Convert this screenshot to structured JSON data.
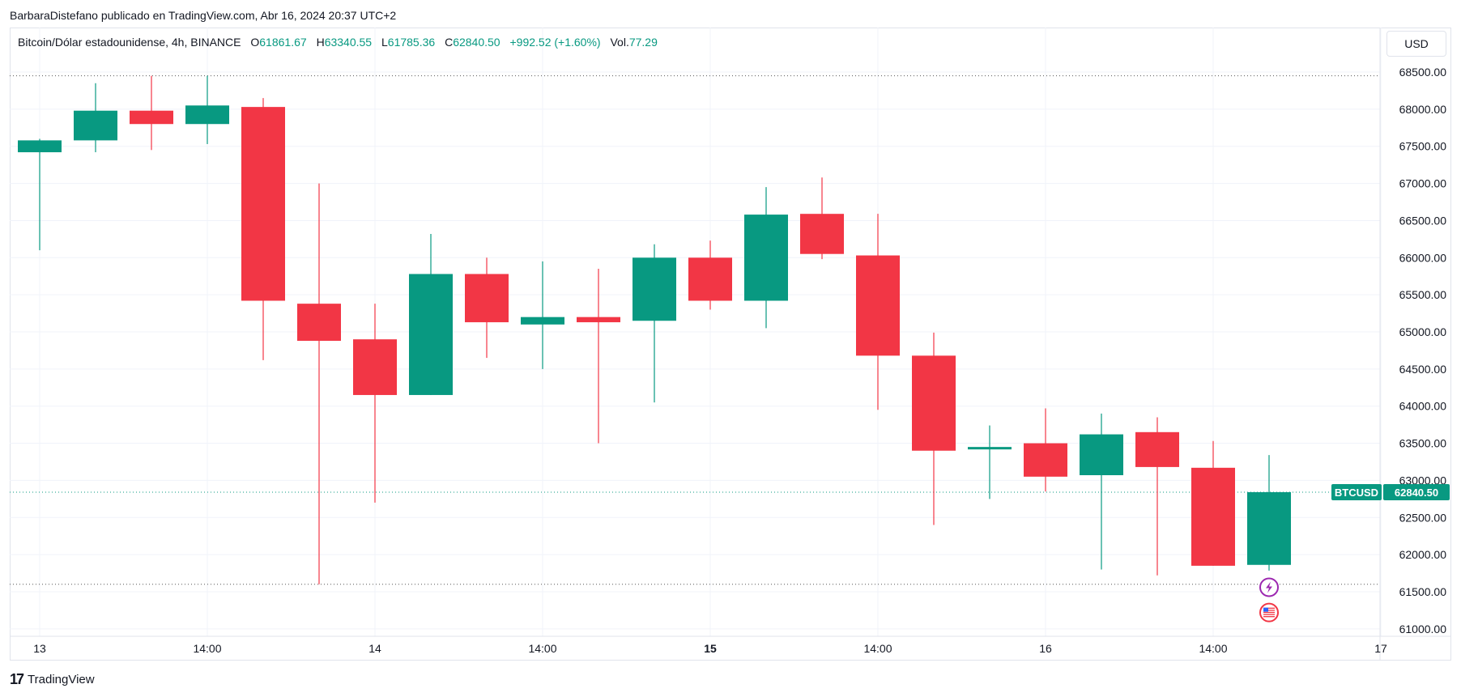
{
  "publisher_line": "BarbaraDistefano publicado en TradingView.com, Abr 16, 2024 20:37 UTC+2",
  "legend": {
    "symbol": "Bitcoin/Dólar estadounidense, 4h, BINANCE",
    "o_label": "O",
    "o": "61861.67",
    "h_label": "H",
    "h": "63340.55",
    "l_label": "L",
    "l": "61785.36",
    "c_label": "C",
    "c": "62840.50",
    "change": "+992.52 (+1.60%)",
    "vol_label": "Vol.",
    "vol": "77.29"
  },
  "currency_button": "USD",
  "brand": "TradingView",
  "colors": {
    "up": "#089981",
    "down": "#f23645",
    "grid": "#f0f3fa",
    "text": "#131722"
  },
  "chart_data": {
    "type": "candlestick",
    "ylim": [
      60900,
      69100
    ],
    "y_ticks": [
      "68500.00",
      "68000.00",
      "67500.00",
      "67000.00",
      "66500.00",
      "66000.00",
      "65500.00",
      "65000.00",
      "64500.00",
      "64000.00",
      "63500.00",
      "63000.00",
      "62500.00",
      "62000.00",
      "61500.00",
      "61000.00"
    ],
    "x_ticks": [
      {
        "label": "13",
        "candle": 0,
        "bold": false
      },
      {
        "label": "14:00",
        "candle": 3,
        "bold": false
      },
      {
        "label": "14",
        "candle": 6,
        "bold": false
      },
      {
        "label": "14:00",
        "candle": 9,
        "bold": false
      },
      {
        "label": "15",
        "candle": 12,
        "bold": true
      },
      {
        "label": "14:00",
        "candle": 15,
        "bold": false
      },
      {
        "label": "16",
        "candle": 18,
        "bold": false
      },
      {
        "label": "14:00",
        "candle": 21,
        "bold": false
      },
      {
        "label": "17",
        "candle": 24,
        "bold": false
      }
    ],
    "candles": [
      {
        "o": 67420,
        "h": 67600,
        "l": 66100,
        "c": 67580
      },
      {
        "o": 67580,
        "h": 68350,
        "l": 67420,
        "c": 67980
      },
      {
        "o": 67980,
        "h": 68450,
        "l": 67450,
        "c": 67800
      },
      {
        "o": 67800,
        "h": 68450,
        "l": 67530,
        "c": 68050
      },
      {
        "o": 68030,
        "h": 68150,
        "l": 64620,
        "c": 65420
      },
      {
        "o": 65380,
        "h": 67000,
        "l": 61600,
        "c": 64880
      },
      {
        "o": 64900,
        "h": 65380,
        "l": 62700,
        "c": 64150
      },
      {
        "o": 64150,
        "h": 66320,
        "l": 64150,
        "c": 65780
      },
      {
        "o": 65780,
        "h": 66000,
        "l": 64650,
        "c": 65130
      },
      {
        "o": 65100,
        "h": 65950,
        "l": 64500,
        "c": 65200
      },
      {
        "o": 65200,
        "h": 65850,
        "l": 63500,
        "c": 65130
      },
      {
        "o": 65150,
        "h": 66180,
        "l": 64050,
        "c": 66000
      },
      {
        "o": 66000,
        "h": 66230,
        "l": 65300,
        "c": 65420
      },
      {
        "o": 65420,
        "h": 66950,
        "l": 65050,
        "c": 66580
      },
      {
        "o": 66590,
        "h": 67080,
        "l": 65980,
        "c": 66050
      },
      {
        "o": 66030,
        "h": 66590,
        "l": 63950,
        "c": 64680
      },
      {
        "o": 64680,
        "h": 64990,
        "l": 62400,
        "c": 63400
      },
      {
        "o": 63420,
        "h": 63740,
        "l": 62750,
        "c": 63450
      },
      {
        "o": 63500,
        "h": 63970,
        "l": 62850,
        "c": 63050
      },
      {
        "o": 63070,
        "h": 63900,
        "l": 61800,
        "c": 63620
      },
      {
        "o": 63650,
        "h": 63850,
        "l": 61720,
        "c": 63180
      },
      {
        "o": 63170,
        "h": 63530,
        "l": 61850,
        "c": 61850
      },
      {
        "o": 61862,
        "h": 63341,
        "l": 61785,
        "c": 62841
      }
    ],
    "hlines": [
      68450,
      62840.5,
      61600
    ],
    "last_price_label": "BTCUSD",
    "last_price": "62840.50",
    "last_price_value": 62840.5,
    "markers": [
      {
        "candle": 22,
        "y": 61560,
        "icon": "lightning-icon",
        "color": "#9c27b0"
      },
      {
        "candle": 22,
        "y": 61220,
        "icon": "us-flag-icon",
        "color": "#f23645"
      }
    ]
  }
}
